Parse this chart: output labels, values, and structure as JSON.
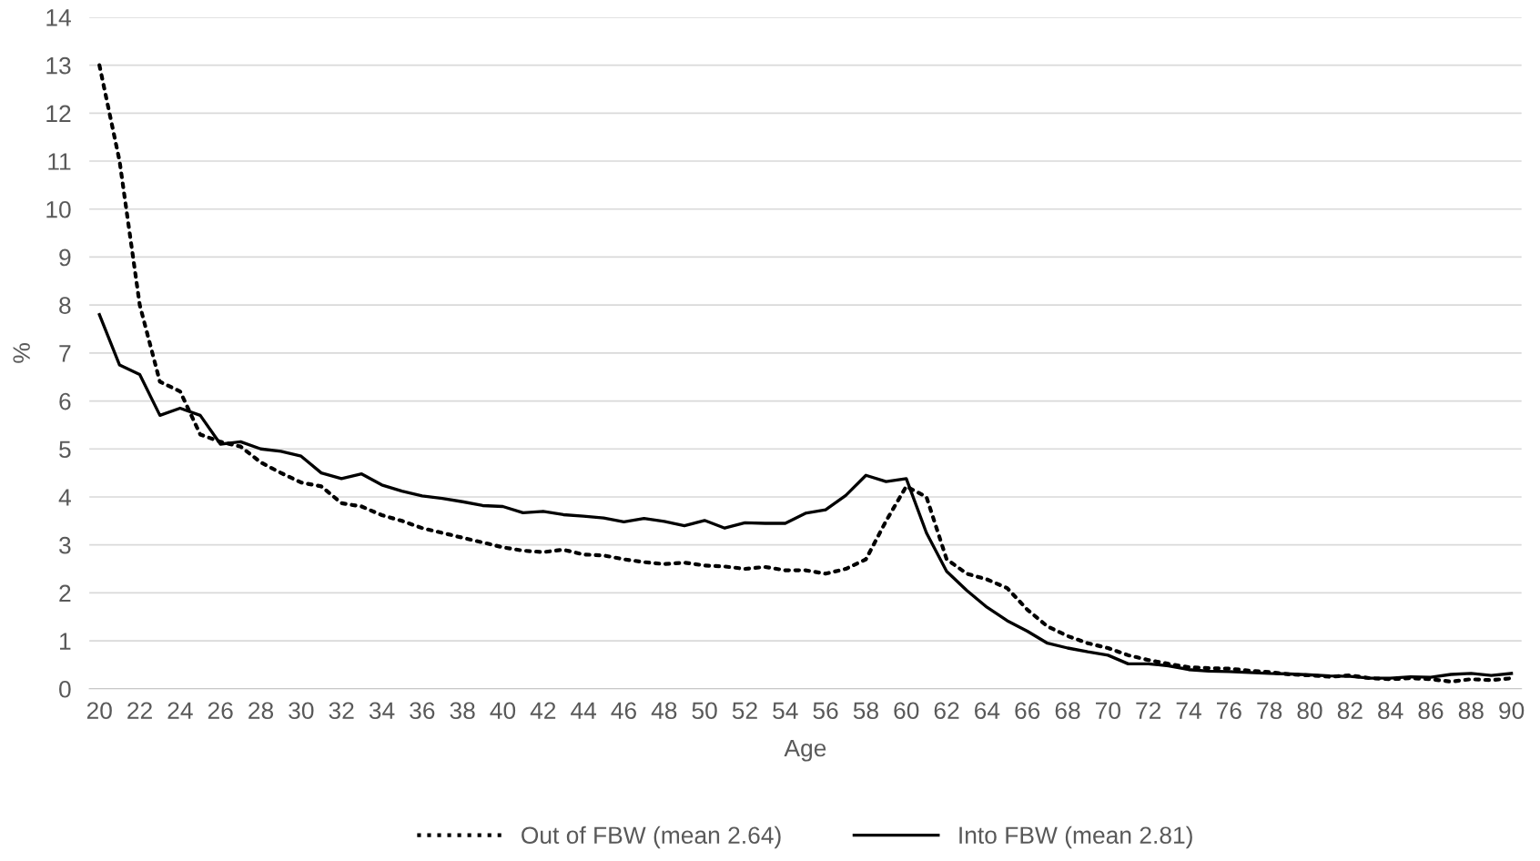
{
  "chart_data": {
    "type": "line",
    "xlabel": "Age",
    "ylabel": "%",
    "categories": [
      "20",
      null,
      "22",
      null,
      "24",
      null,
      "26",
      null,
      "28",
      null,
      "30",
      null,
      "32",
      null,
      "34",
      null,
      "36",
      null,
      "38",
      null,
      "40",
      null,
      "42",
      null,
      "44",
      null,
      "46",
      null,
      "48",
      null,
      "50",
      null,
      "52",
      null,
      "54",
      null,
      "56",
      null,
      "58",
      null,
      "60",
      null,
      "62",
      null,
      "64",
      null,
      "66",
      null,
      "68",
      null,
      "70",
      null,
      "72",
      null,
      "74",
      null,
      "76",
      null,
      "78",
      null,
      "80",
      null,
      "82",
      null,
      "84",
      null,
      "86",
      null,
      "88",
      null,
      "90"
    ],
    "series": [
      {
        "name": "Out of FBW (mean 2.64)",
        "color": "#000000",
        "line_style": "dotted",
        "values": [
          13.0,
          11.0,
          8.0,
          6.4,
          6.2,
          5.3,
          5.15,
          5.05,
          4.72,
          4.5,
          4.3,
          4.22,
          3.87,
          3.8,
          3.62,
          3.5,
          3.35,
          3.25,
          3.15,
          3.05,
          2.95,
          2.88,
          2.85,
          2.9,
          2.8,
          2.78,
          2.7,
          2.64,
          2.6,
          2.63,
          2.57,
          2.55,
          2.5,
          2.54,
          2.47,
          2.47,
          2.4,
          2.5,
          2.7,
          3.5,
          4.22,
          4.0,
          2.7,
          2.4,
          2.28,
          2.1,
          1.65,
          1.3,
          1.1,
          0.95,
          0.85,
          0.7,
          0.6,
          0.52,
          0.45,
          0.43,
          0.42,
          0.38,
          0.35,
          0.3,
          0.28,
          0.25,
          0.28,
          0.22,
          0.2,
          0.22,
          0.2,
          0.15,
          0.2,
          0.18,
          0.22
        ]
      },
      {
        "name": "Into FBW (mean 2.81)",
        "color": "#000000",
        "line_style": "solid",
        "values": [
          7.8,
          6.75,
          6.55,
          5.7,
          5.85,
          5.7,
          5.1,
          5.15,
          5.0,
          4.95,
          4.85,
          4.5,
          4.38,
          4.48,
          4.25,
          4.12,
          4.02,
          3.97,
          3.9,
          3.82,
          3.8,
          3.67,
          3.7,
          3.63,
          3.6,
          3.56,
          3.48,
          3.55,
          3.49,
          3.4,
          3.51,
          3.35,
          3.46,
          3.45,
          3.45,
          3.66,
          3.73,
          4.03,
          4.45,
          4.32,
          4.38,
          3.25,
          2.45,
          2.05,
          1.7,
          1.42,
          1.2,
          0.95,
          0.85,
          0.77,
          0.7,
          0.52,
          0.52,
          0.48,
          0.4,
          0.37,
          0.36,
          0.34,
          0.32,
          0.31,
          0.29,
          0.27,
          0.26,
          0.22,
          0.22,
          0.25,
          0.24,
          0.3,
          0.32,
          0.28,
          0.32
        ]
      }
    ],
    "ylim": [
      0,
      14
    ],
    "yticks": [
      0,
      1,
      2,
      3,
      4,
      5,
      6,
      7,
      8,
      9,
      10,
      11,
      12,
      13,
      14
    ],
    "grid": "y",
    "legend": "bottom"
  }
}
